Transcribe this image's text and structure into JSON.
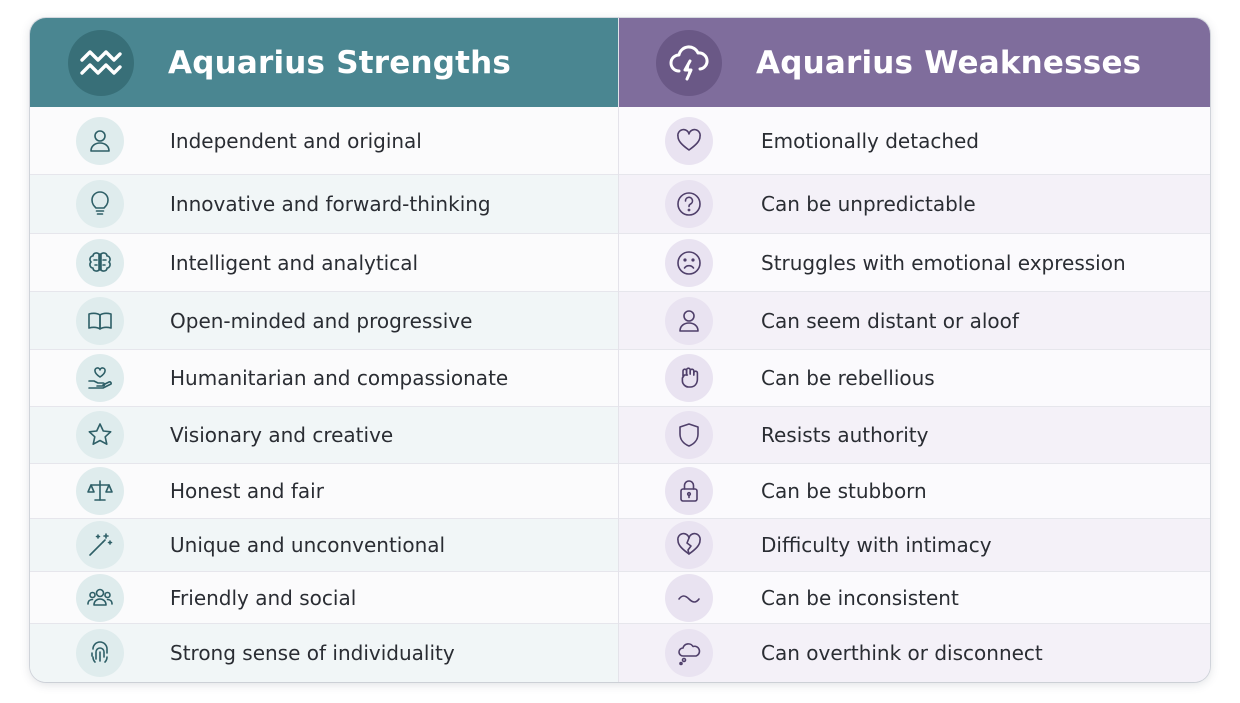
{
  "strengths": {
    "title": "Aquarius Strengths",
    "header_icon": "aquarius-wave-icon",
    "items": [
      {
        "label": "Independent and original",
        "icon": "person-icon"
      },
      {
        "label": "Innovative and forward-thinking",
        "icon": "lightbulb-icon"
      },
      {
        "label": "Intelligent and analytical",
        "icon": "brain-icon"
      },
      {
        "label": "Open-minded and progressive",
        "icon": "book-icon"
      },
      {
        "label": "Humanitarian and compassionate",
        "icon": "heart-hand-icon"
      },
      {
        "label": "Visionary and creative",
        "icon": "star-icon"
      },
      {
        "label": "Honest and fair",
        "icon": "scales-icon"
      },
      {
        "label": "Unique and unconventional",
        "icon": "magic-wand-icon"
      },
      {
        "label": "Friendly and social",
        "icon": "people-icon"
      },
      {
        "label": "Strong sense of individuality",
        "icon": "fingerprint-icon"
      }
    ]
  },
  "weaknesses": {
    "title": "Aquarius Weaknesses",
    "header_icon": "storm-cloud-icon",
    "items": [
      {
        "label": "Emotionally detached",
        "icon": "heart-icon"
      },
      {
        "label": "Can be unpredictable",
        "icon": "question-icon"
      },
      {
        "label": "Struggles with emotional expression",
        "icon": "sad-face-icon"
      },
      {
        "label": "Can seem distant or aloof",
        "icon": "person-icon"
      },
      {
        "label": "Can be rebellious",
        "icon": "fist-icon"
      },
      {
        "label": "Resists authority",
        "icon": "shield-icon"
      },
      {
        "label": "Can be stubborn",
        "icon": "lock-icon"
      },
      {
        "label": "Difficulty with intimacy",
        "icon": "broken-heart-icon"
      },
      {
        "label": "Can be inconsistent",
        "icon": "tilde-icon"
      },
      {
        "label": "Can overthink or disconnect",
        "icon": "thought-bubble-icon"
      }
    ]
  },
  "colors": {
    "strengths_header": "#4a8691",
    "weaknesses_header": "#7f6d9c"
  }
}
